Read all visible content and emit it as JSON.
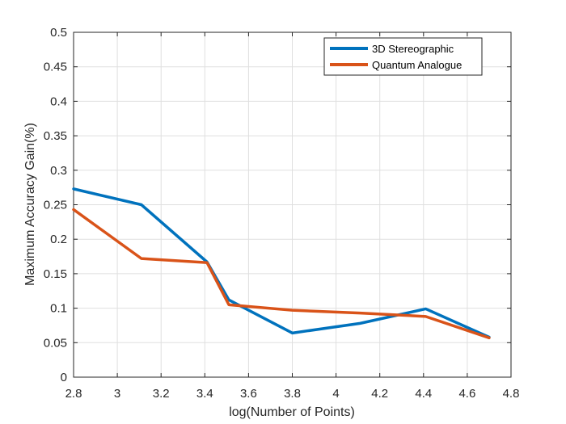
{
  "chart_data": {
    "type": "line",
    "title": "",
    "xlabel": "log(Number of Points)",
    "ylabel": "Maximum Accuracy Gain(%)",
    "xlim": [
      2.8,
      4.8
    ],
    "ylim": [
      0,
      0.5
    ],
    "xticks": [
      "2.8",
      "3",
      "3.2",
      "3.4",
      "3.6",
      "3.8",
      "4",
      "4.2",
      "4.4",
      "4.6",
      "4.8"
    ],
    "yticks": [
      "0",
      "0.05",
      "0.1",
      "0.15",
      "0.2",
      "0.25",
      "0.3",
      "0.35",
      "0.4",
      "0.45",
      "0.5"
    ],
    "grid": true,
    "legend_position": "top-right",
    "series": [
      {
        "name": "3D Stereographic",
        "color": "#0072BD",
        "x": [
          2.8,
          3.11,
          3.41,
          3.51,
          3.8,
          4.11,
          4.41,
          4.7
        ],
        "y": [
          0.273,
          0.25,
          0.167,
          0.112,
          0.064,
          0.078,
          0.099,
          0.058
        ]
      },
      {
        "name": "Quantum Analogue",
        "color": "#D95319",
        "x": [
          2.8,
          3.11,
          3.41,
          3.51,
          3.8,
          4.11,
          4.41,
          4.7
        ],
        "y": [
          0.243,
          0.172,
          0.166,
          0.105,
          0.097,
          0.093,
          0.088,
          0.057
        ]
      }
    ]
  }
}
